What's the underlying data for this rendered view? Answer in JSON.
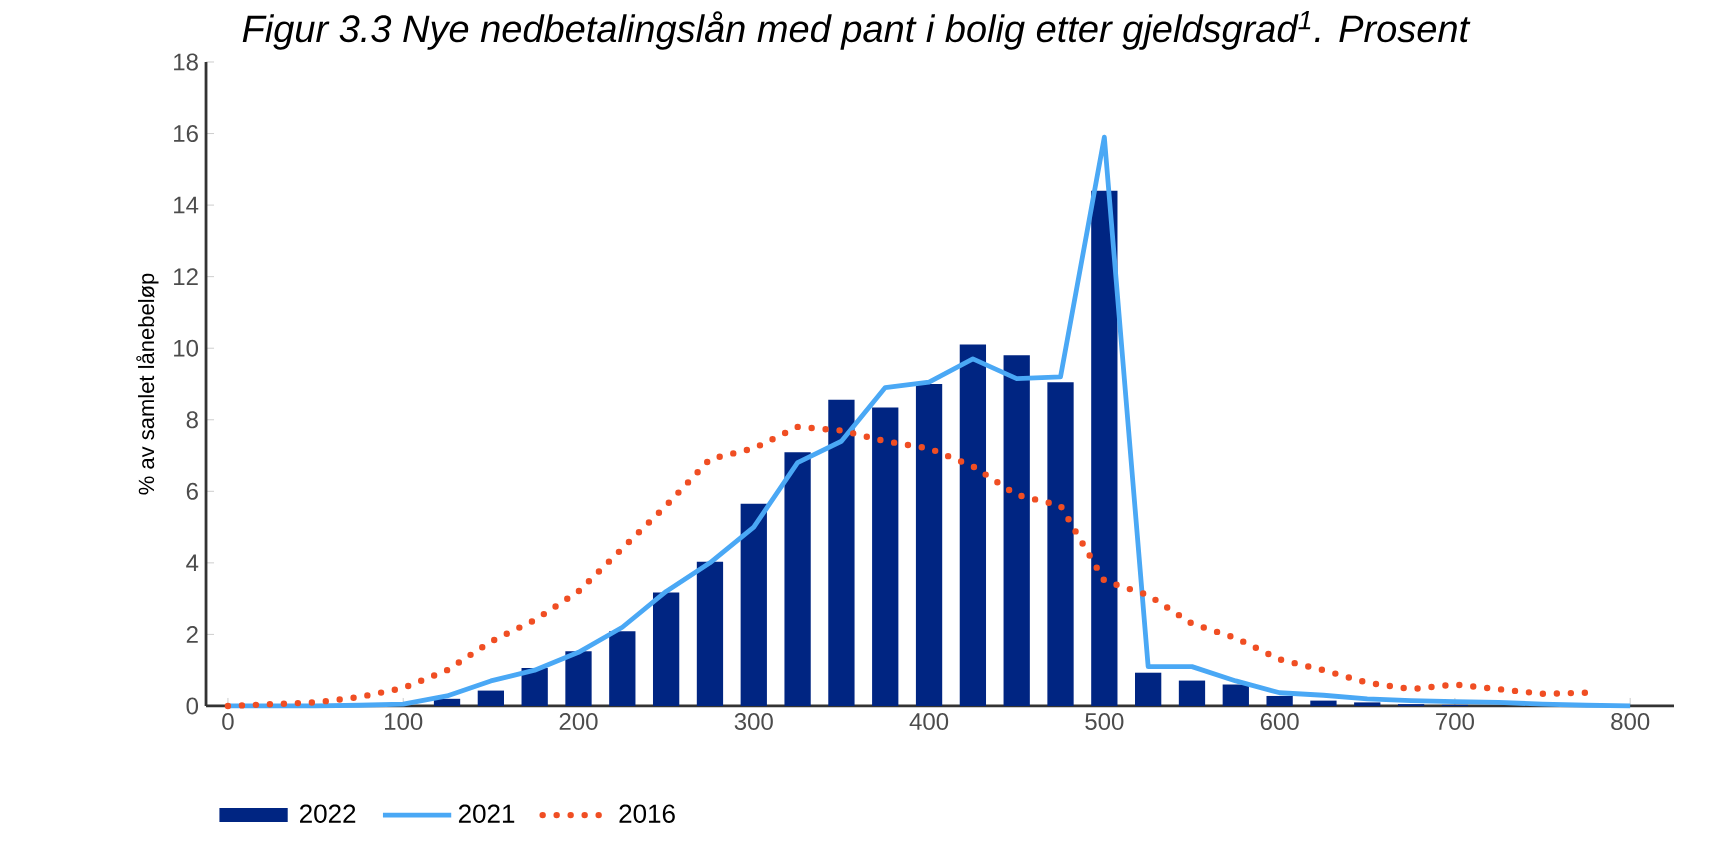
{
  "chart_data": {
    "type": "bar",
    "title": "*Figur 3.3 Nye nedbetalingslån med pant i bolig etter gjeldsgrad$^{1}$. Prosent*",
    "ylabel": "% av samlet lånebeløp",
    "x": [
      0,
      25,
      50,
      75,
      100,
      125,
      150,
      175,
      200,
      225,
      250,
      275,
      300,
      325,
      350,
      375,
      400,
      425,
      450,
      475,
      500,
      525,
      550,
      575,
      600,
      625,
      650,
      675,
      700,
      725,
      750,
      775,
      800
    ],
    "xlim": [
      -12.5,
      825
    ],
    "xticks": [
      0,
      100,
      200,
      300,
      400,
      500,
      600,
      700,
      800
    ],
    "ylim": [
      0,
      18
    ],
    "yticks": [
      0,
      2,
      4,
      6,
      8,
      10,
      12,
      14,
      16,
      18
    ],
    "grid": false,
    "legend": "bottom",
    "series": [
      {
        "name": "2022",
        "color": "#002582",
        "values": [
          0,
          0,
          0,
          null,
          null,
          0.2,
          0.43,
          1.06,
          1.53,
          2.09,
          3.17,
          4.03,
          5.65,
          7.09,
          8.56,
          8.34,
          9.0,
          10.1,
          9.8,
          9.05,
          14.4,
          0.93,
          0.71,
          0.6,
          0.28,
          0.15,
          0.1,
          0.05,
          0.03,
          0,
          0,
          0,
          0
        ]
      },
      {
        "name": "2021",
        "type": "line",
        "color": "#4aa8f5",
        "line_style": "solid",
        "values": [
          0,
          0,
          0,
          0.02,
          0.05,
          0.28,
          0.7,
          1.0,
          1.5,
          2.2,
          3.2,
          4.0,
          5.0,
          6.8,
          7.4,
          8.9,
          9.05,
          9.7,
          9.15,
          9.2,
          15.9,
          1.1,
          1.1,
          0.7,
          0.37,
          0.3,
          0.2,
          0.15,
          0.12,
          0.1,
          0.05,
          0.02,
          0
        ]
      },
      {
        "name": "2016",
        "type": "line",
        "color": "#f04e23",
        "line_style": "dotted",
        "values": [
          0,
          0.05,
          0.1,
          0.25,
          0.5,
          1.0,
          1.8,
          2.4,
          3.2,
          4.4,
          5.6,
          6.9,
          7.2,
          7.8,
          7.7,
          7.4,
          7.2,
          6.7,
          5.9,
          5.6,
          3.5,
          3.1,
          2.3,
          1.9,
          1.3,
          1.0,
          0.65,
          0.47,
          0.6,
          0.47,
          0.34,
          0.37,
          null
        ]
      }
    ]
  }
}
